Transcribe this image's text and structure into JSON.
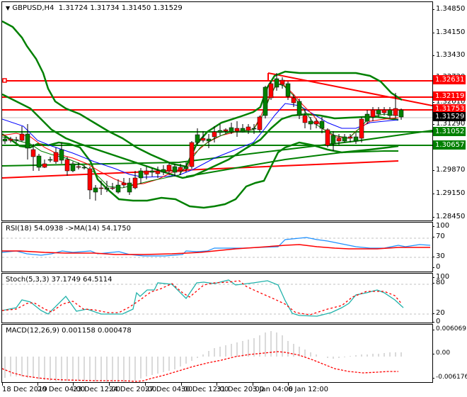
{
  "header": {
    "symbol": "GBPUSD,H4",
    "ohlc": "1.31724 1.31734 1.31450 1.31529",
    "title_full": "GBPUSD,H4  1.31724 1.31734 1.31450 1.31529"
  },
  "main_axis": {
    "ticks": [
      "1.34850",
      "1.34150",
      "1.33430",
      "1.32720",
      "1.32010",
      "1.31290",
      "1.30580",
      "1.29870",
      "1.29150",
      "1.28450"
    ]
  },
  "price_labels": [
    {
      "value": "1.32631",
      "color": "#ff0000"
    },
    {
      "value": "1.32119",
      "color": "#ff0000"
    },
    {
      "value": "1.31753",
      "color": "#ff0000"
    },
    {
      "value": "1.31529",
      "color": "#000000"
    },
    {
      "value": "1.31052",
      "color": "#008000"
    },
    {
      "value": "1.30657",
      "color": "#008000"
    }
  ],
  "rsi": {
    "title": "RSI(18) 54.0938  ->MA(14) 54.1750",
    "ticks": [
      "100",
      "70",
      "30",
      "0"
    ]
  },
  "stoch": {
    "title": "Stoch(5,3,3) 37.1749 64.5114",
    "ticks": [
      "100",
      "80",
      "20",
      "0"
    ]
  },
  "macd": {
    "title": "MACD(12,26,9) 0.001158 0.000478",
    "ticks": [
      "0.006069",
      "0.00",
      "-0.006176"
    ]
  },
  "time_axis": {
    "labels": [
      "18 Dec 2019",
      "20 Dec 04:00",
      "23 Dec 12:00",
      "24 Dec 20:00",
      "27 Dec 04:00",
      "30 Dec 12:00",
      "31 Dec 20:00",
      "3 Jan 04:00",
      "6 Jan 12:00"
    ]
  },
  "colors": {
    "bull_candle": "#008000",
    "bear_candle": "#ff0000",
    "bollinger": "#008000",
    "resistance": "#ff0000",
    "support": "#008000",
    "ma_fast": "#ff0000",
    "ma_slow": "#0000ff",
    "rsi_line": "#1e90ff",
    "rsi_ma": "#ff0000",
    "stoch_main": "#20b2aa",
    "stoch_signal": "#ff0000",
    "macd_hist": "#c0c0c0",
    "macd_signal": "#ff0000"
  },
  "chart_data": [
    {
      "type": "candlestick",
      "title": "GBPUSD,H4",
      "ohlc_last": {
        "open": 1.31724,
        "high": 1.31734,
        "low": 1.3145,
        "close": 1.31529
      },
      "ylim": [
        1.2845,
        1.3485
      ],
      "y_ticks": [
        1.3485,
        1.3415,
        1.3343,
        1.3272,
        1.3201,
        1.3129,
        1.3058,
        1.2987,
        1.2915,
        1.2845
      ],
      "x_tick_labels": [
        "18 Dec 2019",
        "20 Dec 04:00",
        "23 Dec 12:00",
        "24 Dec 20:00",
        "27 Dec 04:00",
        "30 Dec 12:00",
        "31 Dec 20:00",
        "3 Jan 04:00",
        "6 Jan 12:00"
      ],
      "horizontal_levels": [
        {
          "value": 1.32631,
          "color": "red",
          "label": "resistance"
        },
        {
          "value": 1.32119,
          "color": "red",
          "label": "resistance"
        },
        {
          "value": 1.31753,
          "color": "red",
          "label": "resistance"
        },
        {
          "value": 1.31052,
          "color": "green",
          "label": "support"
        },
        {
          "value": 1.30657,
          "color": "green",
          "label": "support"
        }
      ],
      "current_price": 1.31529,
      "overlays": [
        "Bollinger Bands",
        "Fast MA (red)",
        "Slow MA (blue)",
        "Signal MA (green)",
        "Trendlines"
      ]
    },
    {
      "type": "line",
      "title": "RSI(18) 54.0938 ->MA(14) 54.1750",
      "ylim": [
        0,
        100
      ],
      "levels": [
        70,
        30
      ],
      "series": [
        {
          "name": "RSI(18)",
          "last": 54.0938
        },
        {
          "name": "MA(14)",
          "last": 54.175
        }
      ]
    },
    {
      "type": "line",
      "title": "Stoch(5,3,3) 37.1749 64.5114",
      "ylim": [
        0,
        100
      ],
      "levels": [
        80,
        20
      ],
      "series": [
        {
          "name": "%K",
          "last": 37.1749
        },
        {
          "name": "%D",
          "last": 64.5114
        }
      ]
    },
    {
      "type": "bar",
      "title": "MACD(12,26,9) 0.001158 0.000478",
      "ylim": [
        -0.006176,
        0.006069
      ],
      "series": [
        {
          "name": "MACD",
          "last": 0.001158
        },
        {
          "name": "Signal",
          "last": 0.000478
        }
      ]
    }
  ]
}
